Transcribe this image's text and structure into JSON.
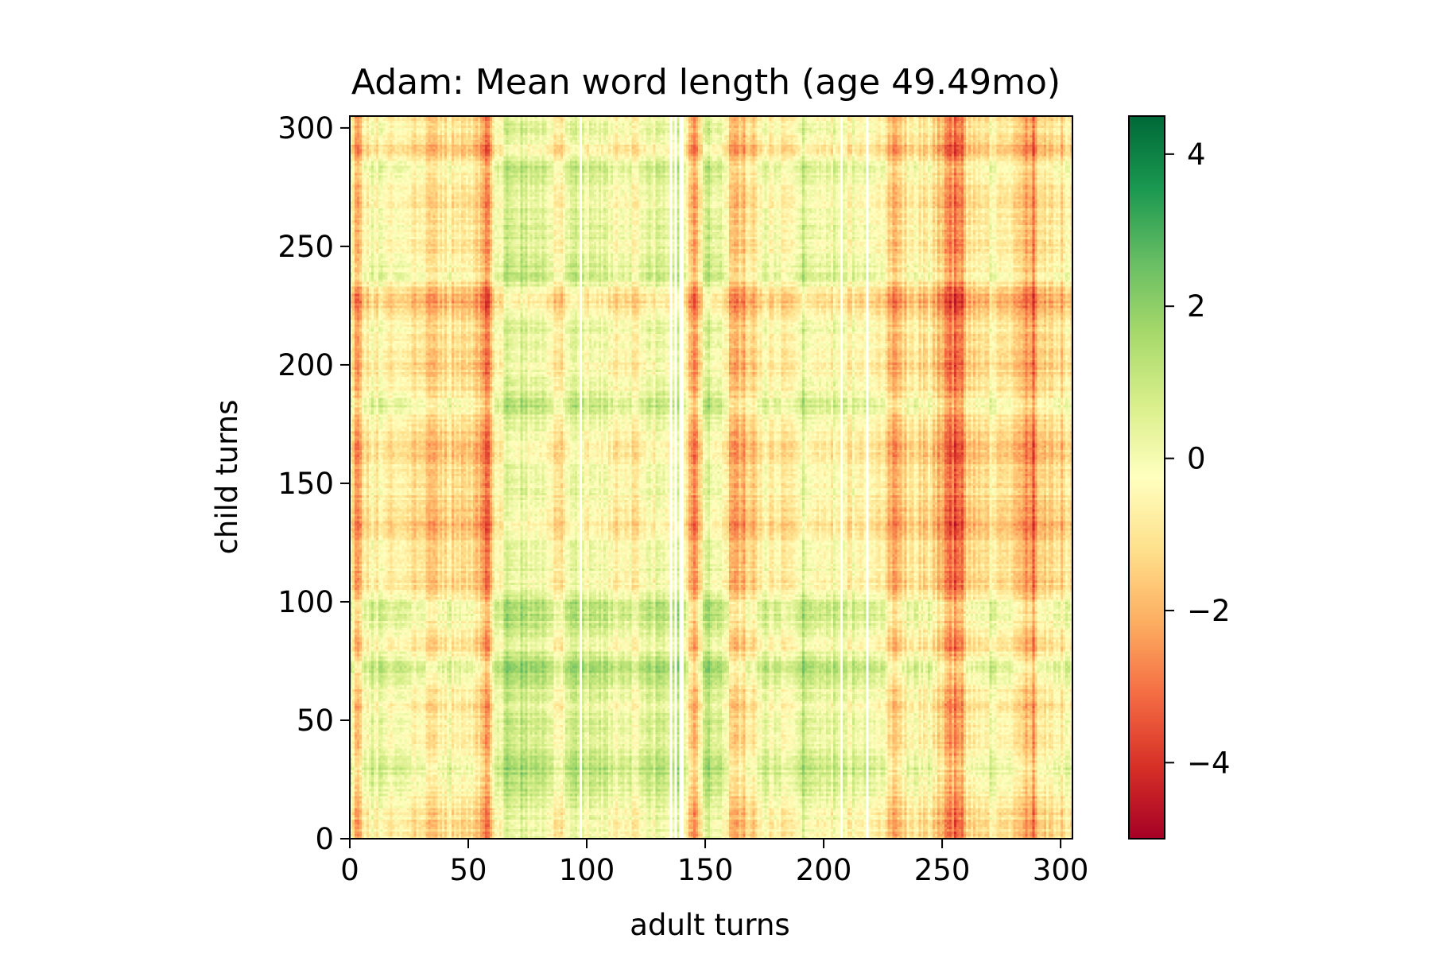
{
  "chart_data": {
    "type": "heatmap",
    "title": "Adam: Mean word length (age 49.49mo)",
    "xlabel": "adult turns",
    "ylabel": "child turns",
    "xlim": [
      0,
      305
    ],
    "ylim": [
      0,
      305
    ],
    "x_ticks": [
      0,
      50,
      100,
      150,
      200,
      250,
      300
    ],
    "y_ticks": [
      0,
      50,
      100,
      150,
      200,
      250,
      300
    ],
    "x_tick_labels": [
      "0",
      "50",
      "100",
      "150",
      "200",
      "250",
      "300"
    ],
    "y_tick_labels": [
      "0",
      "50",
      "100",
      "150",
      "200",
      "250",
      "300"
    ],
    "grid": false,
    "colormap": "RdYlGn",
    "colormap_stops": [
      "#a50026",
      "#d73027",
      "#f46d43",
      "#fdae61",
      "#fee08b",
      "#ffffbf",
      "#d9ef8b",
      "#a6d96a",
      "#66bd63",
      "#1a9850",
      "#006837"
    ],
    "colorbar": {
      "vmin": -5,
      "vmax": 4.5,
      "ticks": [
        4,
        2,
        0,
        -2,
        -4
      ],
      "tick_labels": [
        "4",
        "2",
        "0",
        "−2",
        "−4"
      ],
      "placement": "right"
    },
    "x_dimension": 305,
    "y_dimension": 305,
    "x_profile": [
      [
        0,
        -1.2
      ],
      [
        2,
        -3.2
      ],
      [
        8,
        -0.8
      ],
      [
        15,
        -0.6
      ],
      [
        25,
        -1.0
      ],
      [
        32,
        -2.0
      ],
      [
        34,
        -2.2
      ],
      [
        38,
        -2.4
      ],
      [
        40,
        -1.5
      ],
      [
        50,
        -1.2
      ],
      [
        58,
        -4.5
      ],
      [
        60,
        -1.0
      ],
      [
        65,
        0.4
      ],
      [
        75,
        0.5
      ],
      [
        85,
        -0.8
      ],
      [
        88,
        -2.0
      ],
      [
        90,
        -0.5
      ],
      [
        97,
        0.3
      ],
      [
        98,
        0.0
      ],
      [
        110,
        -0.5
      ],
      [
        120,
        -1.0
      ],
      [
        125,
        -0.4
      ],
      [
        135,
        0.3
      ],
      [
        137,
        0.0
      ],
      [
        140,
        0.6
      ],
      [
        145,
        -3.6
      ],
      [
        150,
        0.8
      ],
      [
        155,
        0.0
      ],
      [
        163,
        -3.4
      ],
      [
        165,
        -2.6
      ],
      [
        170,
        -2.0
      ],
      [
        175,
        -0.5
      ],
      [
        185,
        -1.5
      ],
      [
        192,
        0.6
      ],
      [
        195,
        -0.6
      ],
      [
        200,
        -0.8
      ],
      [
        207,
        0.0
      ],
      [
        210,
        -0.8
      ],
      [
        218,
        0.0
      ],
      [
        225,
        -1.5
      ],
      [
        230,
        -3.8
      ],
      [
        235,
        -1.2
      ],
      [
        245,
        -1.5
      ],
      [
        255,
        -4.5
      ],
      [
        258,
        -3.8
      ],
      [
        260,
        -2.0
      ],
      [
        270,
        -1.0
      ],
      [
        280,
        -1.5
      ],
      [
        288,
        -4.0
      ],
      [
        290,
        -2.0
      ],
      [
        300,
        -1.8
      ],
      [
        304,
        -1.0
      ]
    ],
    "y_profile": [
      [
        0,
        0.0
      ],
      [
        10,
        0.2
      ],
      [
        30,
        2.5
      ],
      [
        40,
        0.4
      ],
      [
        47,
        1.2
      ],
      [
        55,
        0.5
      ],
      [
        62,
        1.0
      ],
      [
        72,
        3.0
      ],
      [
        80,
        0.3
      ],
      [
        98,
        2.5
      ],
      [
        105,
        -0.5
      ],
      [
        115,
        0.4
      ],
      [
        125,
        0.2
      ],
      [
        130,
        -1.2
      ],
      [
        150,
        0.3
      ],
      [
        165,
        -1.0
      ],
      [
        176,
        0.4
      ],
      [
        182,
        1.8
      ],
      [
        190,
        0.3
      ],
      [
        200,
        -0.5
      ],
      [
        215,
        0.6
      ],
      [
        227,
        -1.8
      ],
      [
        235,
        1.0
      ],
      [
        238,
        1.5
      ],
      [
        248,
        0.6
      ],
      [
        255,
        0.8
      ],
      [
        265,
        0.3
      ],
      [
        276,
        0.8
      ],
      [
        284,
        1.5
      ],
      [
        290,
        -1.0
      ],
      [
        298,
        0.5
      ],
      [
        304,
        0.0
      ]
    ],
    "white_columns": [
      97,
      135,
      137,
      139,
      140,
      207,
      218
    ]
  }
}
